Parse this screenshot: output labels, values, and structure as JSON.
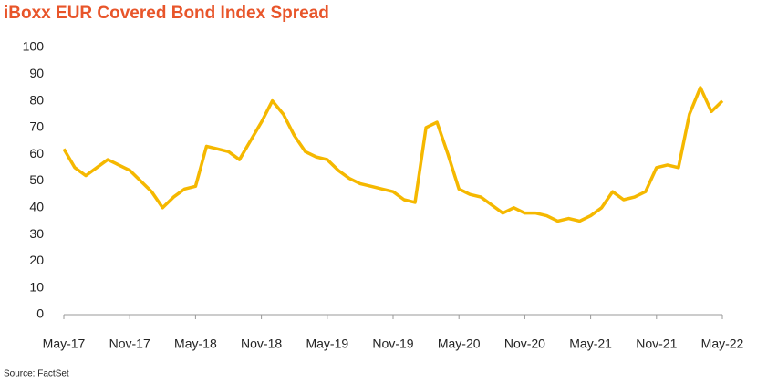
{
  "chart_data": {
    "type": "line",
    "title": "iBoxx EUR Covered Bond Index Spread",
    "source": "Source: FactSet",
    "categories": [
      "May-17",
      null,
      null,
      null,
      null,
      null,
      "Nov-17",
      null,
      null,
      null,
      null,
      null,
      "May-18",
      null,
      null,
      null,
      null,
      null,
      "Nov-18",
      null,
      null,
      null,
      null,
      null,
      "May-19",
      null,
      null,
      null,
      null,
      null,
      "Nov-19",
      null,
      null,
      null,
      null,
      null,
      "May-20",
      null,
      null,
      null,
      null,
      null,
      "Nov-20",
      null,
      null,
      null,
      null,
      null,
      "May-21",
      null,
      null,
      null,
      null,
      null,
      "Nov-21",
      null,
      null,
      null,
      null,
      null,
      "May-22"
    ],
    "series": [
      {
        "name": "iBoxx EUR Covered Bond Index Spread",
        "color": "#f5b800",
        "values": [
          62,
          55,
          52,
          55,
          58,
          56,
          54,
          50,
          46,
          40,
          44,
          47,
          48,
          63,
          62,
          61,
          58,
          65,
          72,
          80,
          75,
          67,
          61,
          59,
          58,
          54,
          51,
          49,
          48,
          47,
          46,
          43,
          42,
          70,
          72,
          60,
          47,
          45,
          44,
          41,
          38,
          40,
          38,
          38,
          37,
          35,
          36,
          35,
          37,
          40,
          46,
          43,
          44,
          46,
          55,
          56,
          55,
          75,
          85,
          76,
          80
        ]
      }
    ],
    "ylim": [
      0,
      100
    ],
    "yticks": [
      0,
      10,
      20,
      30,
      40,
      50,
      60,
      70,
      80,
      90,
      100
    ],
    "grid": false
  }
}
